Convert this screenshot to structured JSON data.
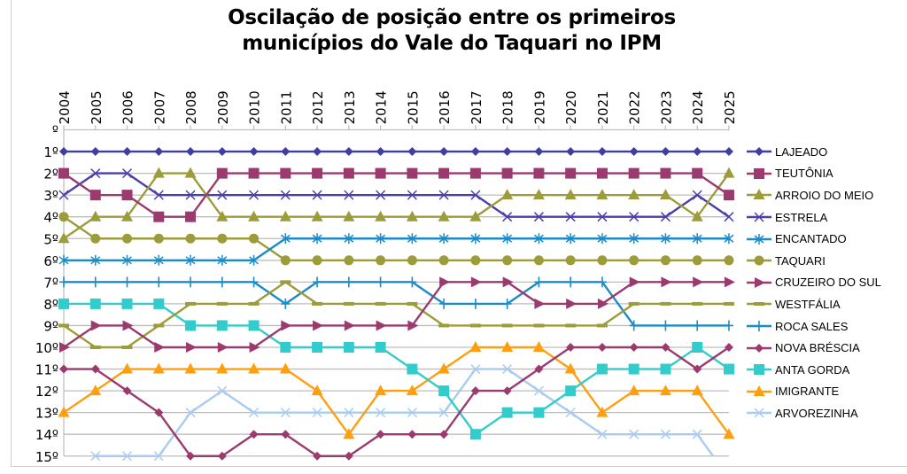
{
  "chart_data": {
    "type": "line",
    "title": [
      "Oscilação de posição entre os primeiros",
      "municípios do Vale do Taquari no IPM"
    ],
    "xlabel": "",
    "ylabel": "",
    "x": [
      "2004",
      "2005",
      "2006",
      "2007",
      "2008",
      "2009",
      "2010",
      "2011",
      "2012",
      "2013",
      "2014",
      "2015",
      "2016",
      "2017",
      "2018",
      "2019",
      "2020",
      "2021",
      "2022",
      "2023",
      "2024",
      "2025"
    ],
    "y_ticks": [
      "º",
      "1º",
      "2º",
      "3º",
      "4º",
      "5º",
      "6º",
      "7º",
      "8º",
      "9º",
      "10º",
      "11º",
      "12º",
      "13º",
      "14º",
      "15º"
    ],
    "ylim": [
      0,
      15
    ],
    "y_reversed": true,
    "grid": true,
    "legend_position": "right",
    "series": [
      {
        "name": "LAJEADO",
        "color": "#3F3FA0",
        "marker": "diamond",
        "values": [
          1,
          1,
          1,
          1,
          1,
          1,
          1,
          1,
          1,
          1,
          1,
          1,
          1,
          1,
          1,
          1,
          1,
          1,
          1,
          1,
          1,
          1
        ]
      },
      {
        "name": "TEUTÔNIA",
        "color": "#9B3A6E",
        "marker": "square",
        "values": [
          2,
          3,
          3,
          4,
          4,
          2,
          2,
          2,
          2,
          2,
          2,
          2,
          2,
          2,
          2,
          2,
          2,
          2,
          2,
          2,
          2,
          3
        ]
      },
      {
        "name": "ARROIO DO MEIO",
        "color": "#9C9C3A",
        "marker": "triangle",
        "values": [
          5,
          4,
          4,
          2,
          2,
          4,
          4,
          4,
          4,
          4,
          4,
          4,
          4,
          4,
          3,
          3,
          3,
          3,
          3,
          3,
          4,
          2
        ]
      },
      {
        "name": "ESTRELA",
        "color": "#4B3FA8",
        "marker": "x",
        "values": [
          3,
          2,
          2,
          3,
          3,
          3,
          3,
          3,
          3,
          3,
          3,
          3,
          3,
          3,
          4,
          4,
          4,
          4,
          4,
          4,
          3,
          4
        ]
      },
      {
        "name": "ENCANTADO",
        "color": "#1C8CC8",
        "marker": "star",
        "values": [
          6,
          6,
          6,
          6,
          6,
          6,
          6,
          5,
          5,
          5,
          5,
          5,
          5,
          5,
          5,
          5,
          5,
          5,
          5,
          5,
          5,
          5
        ]
      },
      {
        "name": "TAQUARI",
        "color": "#9C9C3A",
        "marker": "circle",
        "values": [
          4,
          5,
          5,
          5,
          5,
          5,
          5,
          6,
          6,
          6,
          6,
          6,
          6,
          6,
          6,
          6,
          6,
          6,
          6,
          6,
          6,
          6
        ]
      },
      {
        "name": "CRUZEIRO DO SUL",
        "color": "#9B3A6E",
        "marker": "arrow",
        "values": [
          10,
          9,
          9,
          10,
          10,
          10,
          10,
          9,
          9,
          9,
          9,
          9,
          7,
          7,
          7,
          8,
          8,
          8,
          7,
          7,
          7,
          7
        ]
      },
      {
        "name": "WESTFÁLIA",
        "color": "#9C9C3A",
        "marker": "dash",
        "values": [
          9,
          10,
          10,
          9,
          8,
          8,
          8,
          7,
          8,
          8,
          8,
          8,
          9,
          9,
          9,
          9,
          9,
          9,
          8,
          8,
          8,
          8
        ]
      },
      {
        "name": "ROCA SALES",
        "color": "#1C8CC8",
        "marker": "plus",
        "values": [
          7,
          7,
          7,
          7,
          7,
          7,
          7,
          8,
          7,
          7,
          7,
          7,
          8,
          8,
          8,
          7,
          7,
          7,
          9,
          9,
          9,
          9
        ]
      },
      {
        "name": "NOVA BRÉSCIA",
        "color": "#9B3A6E",
        "marker": "diamond",
        "values": [
          11,
          11,
          12,
          13,
          15,
          15,
          14,
          14,
          15,
          15,
          14,
          14,
          14,
          12,
          12,
          11,
          10,
          10,
          10,
          10,
          11,
          10
        ]
      },
      {
        "name": "ANTA GORDA",
        "color": "#33CCCC",
        "marker": "square",
        "values": [
          8,
          8,
          8,
          8,
          9,
          9,
          9,
          10,
          10,
          10,
          10,
          11,
          12,
          14,
          13,
          13,
          12,
          11,
          11,
          11,
          10,
          11
        ]
      },
      {
        "name": "IMIGRANTE",
        "color": "#FF9F0F",
        "marker": "triangle",
        "values": [
          13,
          12,
          11,
          11,
          11,
          11,
          11,
          11,
          12,
          14,
          12,
          12,
          11,
          10,
          10,
          10,
          11,
          13,
          12,
          12,
          12,
          14
        ]
      },
      {
        "name": "ARVOREZINHA",
        "color": "#A9CBF0",
        "marker": "x",
        "values": [
          null,
          15,
          15,
          15,
          13,
          12,
          13,
          13,
          13,
          13,
          13,
          13,
          13,
          11,
          11,
          12,
          13,
          14,
          14,
          14,
          14,
          "off-chart"
        ]
      }
    ]
  }
}
